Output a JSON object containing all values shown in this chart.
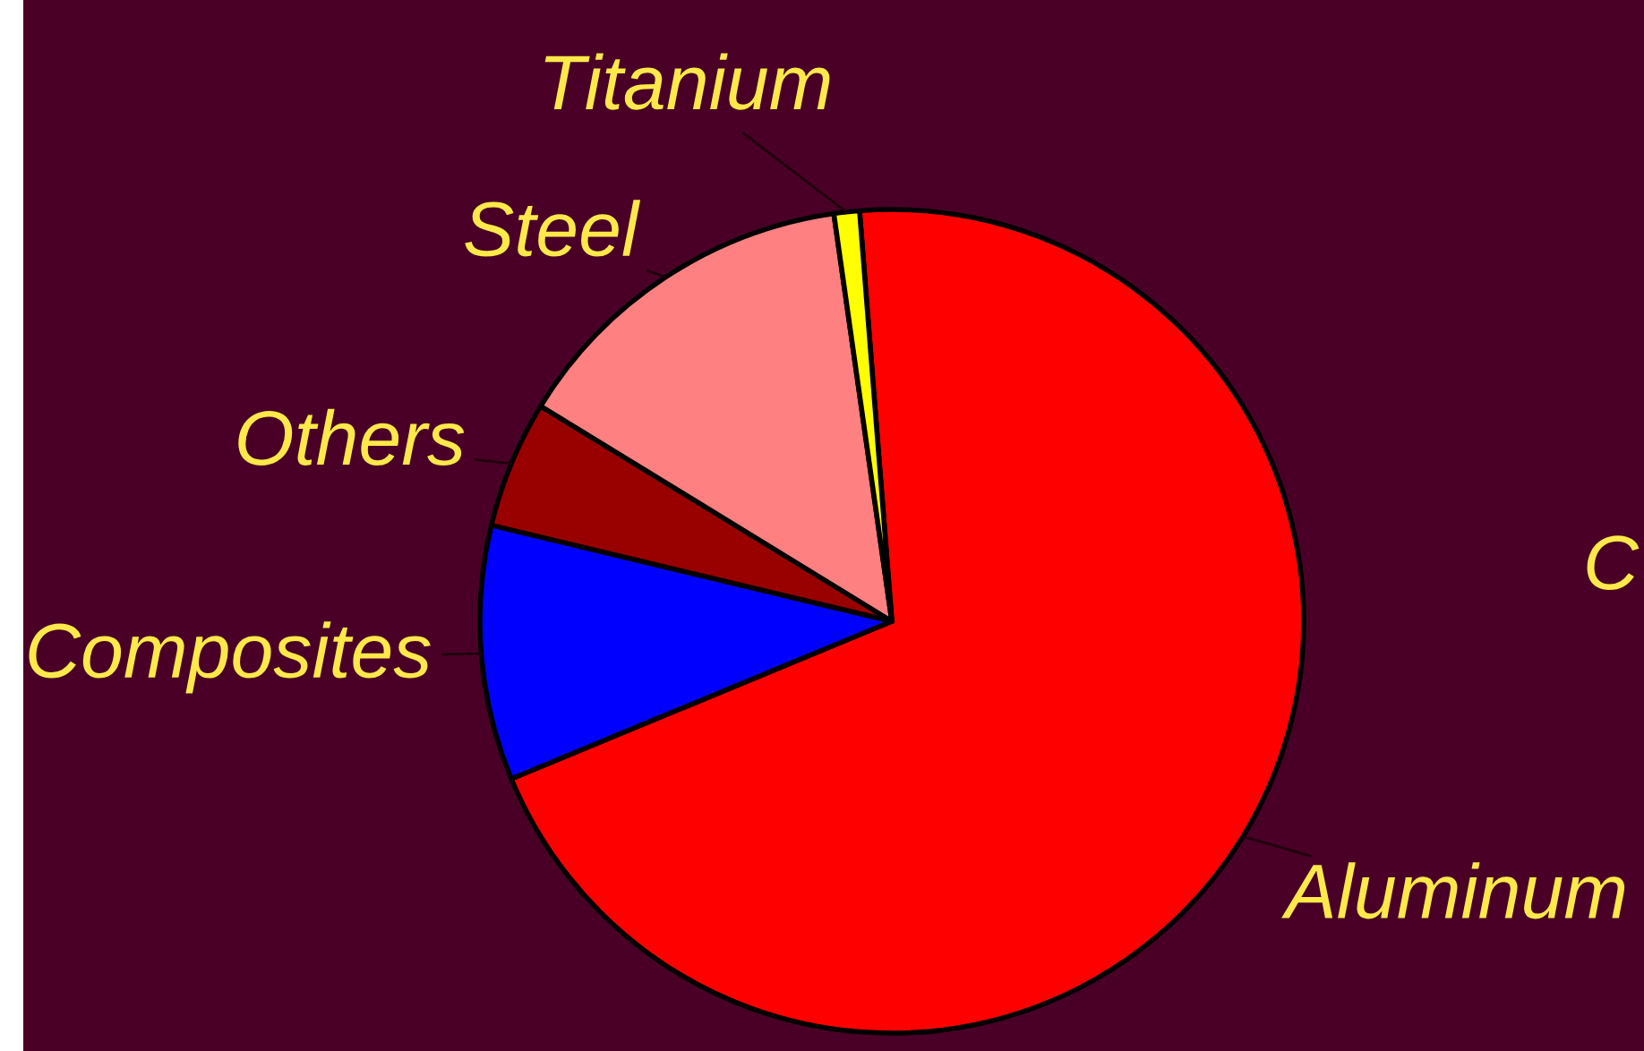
{
  "chart_data": {
    "type": "pie",
    "categories": [
      "Aluminum",
      "Composites",
      "Others",
      "Steel",
      "Titanium"
    ],
    "values": [
      70,
      10,
      5,
      14,
      1
    ],
    "colors": [
      "#ff0000",
      "#0000ff",
      "#990000",
      "#ff8080",
      "#ffff00"
    ],
    "annotations": [
      "C"
    ]
  }
}
